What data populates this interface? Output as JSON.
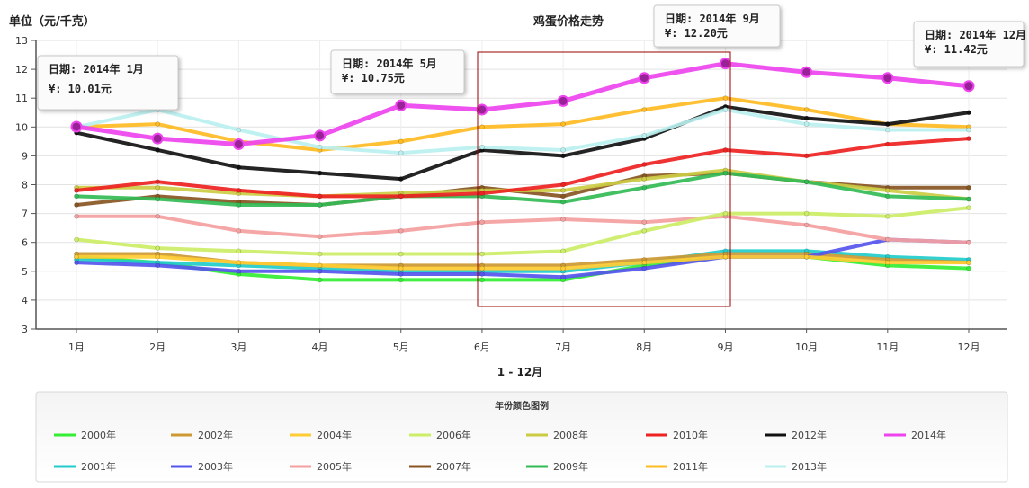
{
  "chart_data": {
    "type": "line",
    "title": "鸡蛋价格走势",
    "ylabel": "单位（元/千克）",
    "xlabel": "1 - 12月",
    "ylim": [
      3,
      13
    ],
    "yticks": [
      3,
      4,
      5,
      6,
      7,
      8,
      9,
      10,
      11,
      12,
      13
    ],
    "categories": [
      "1月",
      "2月",
      "3月",
      "4月",
      "5月",
      "6月",
      "7月",
      "8月",
      "9月",
      "10月",
      "11月",
      "12月"
    ],
    "grid": true,
    "legend_title": "年份颜色图例",
    "legend_position": "bottom",
    "series": [
      {
        "name": "2000年",
        "color": "#33ee33",
        "values": [
          5.5,
          5.3,
          4.9,
          4.7,
          4.7,
          4.7,
          4.7,
          5.2,
          5.5,
          5.5,
          5.2,
          5.1
        ]
      },
      {
        "name": "2001年",
        "color": "#22cccc",
        "values": [
          5.4,
          5.3,
          5.2,
          5.1,
          5.0,
          5.0,
          5.0,
          5.3,
          5.7,
          5.7,
          5.5,
          5.4
        ]
      },
      {
        "name": "2002年",
        "color": "#cc9933",
        "values": [
          5.6,
          5.6,
          5.3,
          5.2,
          5.2,
          5.2,
          5.2,
          5.4,
          5.6,
          5.6,
          5.4,
          5.3
        ]
      },
      {
        "name": "2003年",
        "color": "#5555ee",
        "values": [
          5.3,
          5.2,
          5.0,
          5.0,
          4.9,
          4.9,
          4.8,
          5.1,
          5.5,
          5.5,
          6.1,
          6.0
        ]
      },
      {
        "name": "2004年",
        "color": "#ffcc33",
        "values": [
          5.5,
          5.5,
          5.3,
          5.2,
          5.1,
          5.1,
          5.1,
          5.3,
          5.5,
          5.5,
          5.3,
          5.3
        ]
      },
      {
        "name": "2005年",
        "color": "#f4a0a0",
        "values": [
          6.9,
          6.9,
          6.4,
          6.2,
          6.4,
          6.7,
          6.8,
          6.7,
          6.9,
          6.6,
          6.1,
          6.0
        ]
      },
      {
        "name": "2006年",
        "color": "#ccee66",
        "values": [
          6.1,
          5.8,
          5.7,
          5.6,
          5.6,
          5.6,
          5.7,
          6.4,
          7.0,
          7.0,
          6.9,
          7.2
        ]
      },
      {
        "name": "2007年",
        "color": "#885522",
        "values": [
          7.3,
          7.6,
          7.4,
          7.3,
          7.6,
          7.9,
          7.6,
          8.3,
          8.4,
          8.1,
          7.9,
          7.9
        ]
      },
      {
        "name": "2008年",
        "color": "#cccc44",
        "values": [
          7.9,
          7.9,
          7.7,
          7.6,
          7.7,
          7.8,
          7.8,
          8.2,
          8.5,
          8.1,
          7.8,
          7.5
        ]
      },
      {
        "name": "2009年",
        "color": "#33bb55",
        "values": [
          7.6,
          7.5,
          7.3,
          7.3,
          7.6,
          7.6,
          7.4,
          7.9,
          8.4,
          8.1,
          7.6,
          7.5
        ]
      },
      {
        "name": "2010年",
        "color": "#ee2222",
        "values": [
          7.8,
          8.1,
          7.8,
          7.6,
          7.6,
          7.7,
          8.0,
          8.7,
          9.2,
          9.0,
          9.4,
          9.6
        ]
      },
      {
        "name": "2011年",
        "color": "#ffbb22",
        "values": [
          10.0,
          10.1,
          9.5,
          9.2,
          9.5,
          10.0,
          10.1,
          10.6,
          11.0,
          10.6,
          10.1,
          10.0
        ]
      },
      {
        "name": "2012年",
        "color": "#111111",
        "values": [
          9.8,
          9.2,
          8.6,
          8.4,
          8.2,
          9.2,
          9.0,
          9.6,
          10.7,
          10.3,
          10.1,
          10.5
        ]
      },
      {
        "name": "2013年",
        "color": "#bbf0f0",
        "values": [
          10.0,
          10.6,
          9.9,
          9.3,
          9.1,
          9.3,
          9.2,
          9.7,
          10.6,
          10.1,
          9.9,
          9.9
        ]
      },
      {
        "name": "2014年",
        "color": "#ee44ee",
        "values": [
          10.01,
          9.6,
          9.4,
          9.7,
          10.75,
          10.6,
          10.9,
          11.7,
          12.2,
          11.9,
          11.7,
          11.42
        ]
      }
    ],
    "annotations": [
      {
        "text": "日期: 2014年 1月\n¥: 10.01元"
      },
      {
        "text": "日期: 2014年 5月\n¥: 10.75元"
      },
      {
        "text": "日期: 2014年 9月\n¥: 12.20元"
      },
      {
        "text": "日期: 2014年 12月\n¥: 11.42元"
      }
    ]
  }
}
